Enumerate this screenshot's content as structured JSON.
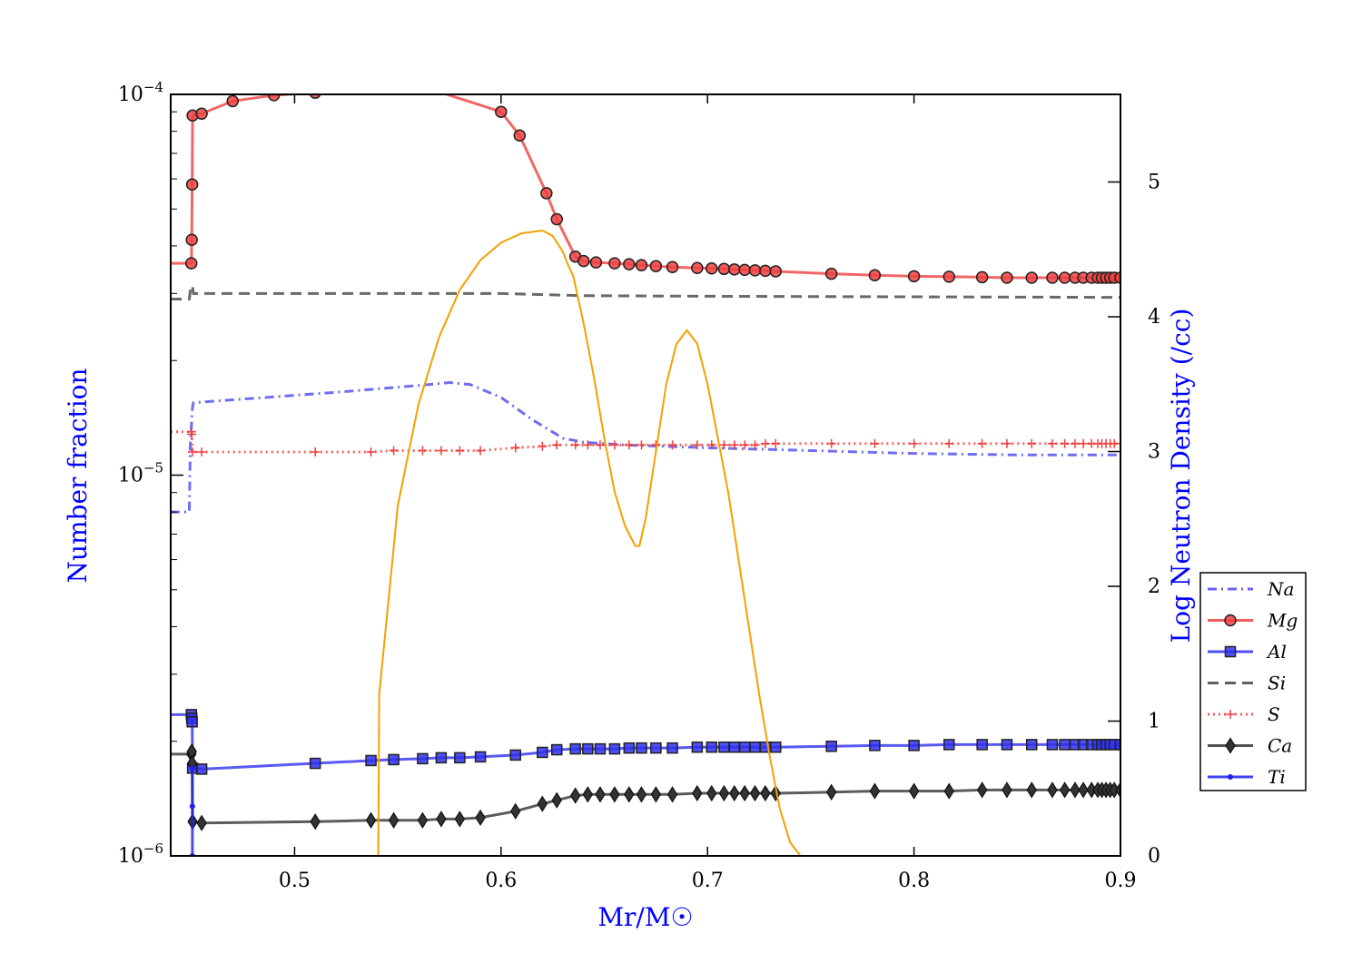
{
  "chart_data": {
    "type": "line",
    "xlabel": "Mr/M☉",
    "ylabel": "Number fraction",
    "y2label": "Log Neutron Density (/cc)",
    "xlim": [
      0.44,
      0.9
    ],
    "ylim": [
      1e-06,
      0.0001
    ],
    "yscale": "log",
    "y2lim": [
      0,
      5.65
    ],
    "xticks": [
      "0.5",
      "0.6",
      "0.7",
      "0.8",
      "0.9"
    ],
    "yticks": [
      {
        "base": "10",
        "exp": "−4"
      },
      {
        "base": "10",
        "exp": "−5"
      },
      {
        "base": "10",
        "exp": "−6"
      }
    ],
    "y2ticks": [
      "0",
      "1",
      "2",
      "3",
      "4",
      "5"
    ],
    "legend_position": "lower-right outside",
    "series": [
      {
        "name": "Na",
        "color": "#4a4af0",
        "style": "dashdot",
        "marker": "none",
        "axis": "left",
        "x": [
          0.44,
          0.449,
          0.4495,
          0.4505,
          0.451,
          0.52,
          0.56,
          0.575,
          0.585,
          0.6,
          0.615,
          0.63,
          0.64,
          0.66,
          0.7,
          0.75,
          0.8,
          0.85,
          0.9
        ],
        "y": [
          8e-06,
          8e-06,
          1.2e-05,
          1.5e-05,
          1.55e-05,
          1.65e-05,
          1.72e-05,
          1.75e-05,
          1.73e-05,
          1.6e-05,
          1.4e-05,
          1.25e-05,
          1.22e-05,
          1.2e-05,
          1.18e-05,
          1.16e-05,
          1.14e-05,
          1.13e-05,
          1.13e-05
        ]
      },
      {
        "name": "Mg",
        "color": "#f04040",
        "style": "solid",
        "marker": "circle",
        "axis": "left",
        "x": [
          0.44,
          0.45,
          0.4502,
          0.4504,
          0.4506,
          0.455,
          0.47,
          0.49,
          0.51,
          0.55,
          0.6,
          0.609,
          0.622,
          0.627,
          0.636,
          0.64,
          0.646,
          0.655,
          0.662,
          0.668,
          0.675,
          0.683,
          0.695,
          0.702,
          0.708,
          0.713,
          0.718,
          0.723,
          0.728,
          0.733,
          0.76,
          0.781,
          0.8,
          0.817,
          0.833,
          0.845,
          0.857,
          0.867,
          0.873,
          0.878,
          0.882,
          0.886,
          0.889,
          0.891,
          0.893,
          0.895,
          0.897,
          0.9
        ],
        "y": [
          3.6e-05,
          3.6e-05,
          4.15e-05,
          5.8e-05,
          8.8e-05,
          8.9e-05,
          9.6e-05,
          9.95e-05,
          0.000101,
          0.00011,
          9e-05,
          7.8e-05,
          5.5e-05,
          4.7e-05,
          3.75e-05,
          3.65e-05,
          3.62e-05,
          3.6e-05,
          3.58e-05,
          3.56e-05,
          3.54e-05,
          3.52e-05,
          3.5e-05,
          3.49e-05,
          3.48e-05,
          3.47e-05,
          3.46e-05,
          3.45e-05,
          3.44e-05,
          3.43e-05,
          3.38e-05,
          3.35e-05,
          3.33e-05,
          3.32e-05,
          3.31e-05,
          3.3e-05,
          3.3e-05,
          3.3e-05,
          3.3e-05,
          3.3e-05,
          3.3e-05,
          3.3e-05,
          3.3e-05,
          3.3e-05,
          3.3e-05,
          3.3e-05,
          3.3e-05,
          3.3e-05
        ],
        "marked_from": 1
      },
      {
        "name": "Al",
        "color": "#3030f0",
        "style": "solid",
        "marker": "square",
        "axis": "left",
        "x": [
          0.44,
          0.45,
          0.4502,
          0.4504,
          0.4506,
          0.455,
          0.51,
          0.537,
          0.548,
          0.562,
          0.571,
          0.58,
          0.59,
          0.607,
          0.62,
          0.627,
          0.636,
          0.642,
          0.648,
          0.655,
          0.662,
          0.668,
          0.675,
          0.683,
          0.695,
          0.702,
          0.708,
          0.713,
          0.718,
          0.723,
          0.728,
          0.733,
          0.76,
          0.781,
          0.8,
          0.817,
          0.833,
          0.845,
          0.857,
          0.867,
          0.873,
          0.878,
          0.882,
          0.886,
          0.889,
          0.891,
          0.893,
          0.895,
          0.897,
          0.9
        ],
        "y": [
          2.35e-06,
          2.35e-06,
          2.3e-06,
          2.25e-06,
          1.7e-06,
          1.69e-06,
          1.75e-06,
          1.78e-06,
          1.79e-06,
          1.8e-06,
          1.81e-06,
          1.81e-06,
          1.82e-06,
          1.84e-06,
          1.87e-06,
          1.9e-06,
          1.91e-06,
          1.91e-06,
          1.91e-06,
          1.91e-06,
          1.92e-06,
          1.92e-06,
          1.92e-06,
          1.92e-06,
          1.93e-06,
          1.93e-06,
          1.93e-06,
          1.93e-06,
          1.93e-06,
          1.93e-06,
          1.93e-06,
          1.93e-06,
          1.94e-06,
          1.95e-06,
          1.95e-06,
          1.96e-06,
          1.96e-06,
          1.96e-06,
          1.96e-06,
          1.96e-06,
          1.96e-06,
          1.96e-06,
          1.96e-06,
          1.96e-06,
          1.96e-06,
          1.96e-06,
          1.96e-06,
          1.96e-06,
          1.96e-06,
          1.96e-06
        ],
        "marked_from": 1
      },
      {
        "name": "Si",
        "color": "#444444",
        "style": "dashed",
        "marker": "none",
        "axis": "left",
        "x": [
          0.44,
          0.449,
          0.4495,
          0.4505,
          0.451,
          0.5,
          0.58,
          0.6,
          0.64,
          0.7,
          0.8,
          0.9
        ],
        "y": [
          2.9e-05,
          2.9e-05,
          3.05e-05,
          3.15e-05,
          3e-05,
          3e-05,
          3e-05,
          3e-05,
          2.96e-05,
          2.95e-05,
          2.94e-05,
          2.93e-05
        ]
      },
      {
        "name": "S",
        "color": "#f04040",
        "style": "dotted",
        "marker": "plus",
        "axis": "left",
        "x": [
          0.44,
          0.45,
          0.4502,
          0.4505,
          0.455,
          0.51,
          0.537,
          0.548,
          0.562,
          0.571,
          0.58,
          0.59,
          0.607,
          0.62,
          0.627,
          0.636,
          0.642,
          0.648,
          0.655,
          0.662,
          0.668,
          0.675,
          0.683,
          0.695,
          0.702,
          0.708,
          0.713,
          0.718,
          0.723,
          0.728,
          0.733,
          0.76,
          0.781,
          0.8,
          0.817,
          0.833,
          0.845,
          0.857,
          0.867,
          0.873,
          0.878,
          0.882,
          0.886,
          0.889,
          0.891,
          0.893,
          0.895,
          0.897,
          0.9
        ],
        "y": [
          1.3e-05,
          1.3e-05,
          1.28e-05,
          1.15e-05,
          1.15e-05,
          1.15e-05,
          1.15e-05,
          1.16e-05,
          1.16e-05,
          1.16e-05,
          1.16e-05,
          1.16e-05,
          1.18e-05,
          1.19e-05,
          1.2e-05,
          1.2e-05,
          1.2e-05,
          1.2e-05,
          1.2e-05,
          1.2e-05,
          1.2e-05,
          1.2e-05,
          1.2e-05,
          1.2e-05,
          1.2e-05,
          1.2e-05,
          1.2e-05,
          1.2e-05,
          1.2e-05,
          1.21e-05,
          1.21e-05,
          1.21e-05,
          1.21e-05,
          1.21e-05,
          1.21e-05,
          1.21e-05,
          1.21e-05,
          1.21e-05,
          1.21e-05,
          1.21e-05,
          1.21e-05,
          1.21e-05,
          1.21e-05,
          1.21e-05,
          1.21e-05,
          1.21e-05,
          1.21e-05,
          1.21e-05,
          1.21e-05
        ],
        "marked_from": 1
      },
      {
        "name": "Ca",
        "color": "#333333",
        "style": "solid",
        "marker": "diamond",
        "axis": "left",
        "x": [
          0.44,
          0.45,
          0.4502,
          0.4504,
          0.4506,
          0.455,
          0.51,
          0.537,
          0.548,
          0.562,
          0.571,
          0.58,
          0.59,
          0.607,
          0.62,
          0.627,
          0.636,
          0.642,
          0.648,
          0.655,
          0.662,
          0.668,
          0.675,
          0.683,
          0.695,
          0.702,
          0.708,
          0.713,
          0.718,
          0.723,
          0.728,
          0.733,
          0.76,
          0.781,
          0.8,
          0.817,
          0.833,
          0.845,
          0.857,
          0.867,
          0.873,
          0.878,
          0.882,
          0.886,
          0.889,
          0.891,
          0.893,
          0.895,
          0.897,
          0.9
        ],
        "y": [
          1.85e-06,
          1.85e-06,
          1.88e-06,
          1.75e-06,
          1.23e-06,
          1.22e-06,
          1.23e-06,
          1.24e-06,
          1.24e-06,
          1.24e-06,
          1.25e-06,
          1.25e-06,
          1.26e-06,
          1.31e-06,
          1.37e-06,
          1.4e-06,
          1.44e-06,
          1.45e-06,
          1.45e-06,
          1.45e-06,
          1.45e-06,
          1.45e-06,
          1.45e-06,
          1.45e-06,
          1.46e-06,
          1.46e-06,
          1.46e-06,
          1.46e-06,
          1.46e-06,
          1.46e-06,
          1.46e-06,
          1.46e-06,
          1.47e-06,
          1.48e-06,
          1.48e-06,
          1.48e-06,
          1.49e-06,
          1.49e-06,
          1.49e-06,
          1.49e-06,
          1.49e-06,
          1.49e-06,
          1.49e-06,
          1.49e-06,
          1.49e-06,
          1.49e-06,
          1.49e-06,
          1.49e-06,
          1.49e-06,
          1.49e-06
        ],
        "marked_from": 1
      },
      {
        "name": "Ti",
        "color": "#2020f0",
        "style": "solid",
        "marker": "dot",
        "axis": "left",
        "x": [
          0.4505,
          0.4505,
          0.4505
        ],
        "y": [
          1e-06,
          1.35e-06,
          1.7e-06
        ]
      },
      {
        "name": "",
        "color": "#f5a000",
        "style": "solid",
        "marker": "none",
        "axis": "right",
        "legend": false,
        "x": [
          0.5405,
          0.541,
          0.55,
          0.56,
          0.57,
          0.58,
          0.59,
          0.6,
          0.61,
          0.62,
          0.625,
          0.63,
          0.632,
          0.635,
          0.64,
          0.645,
          0.65,
          0.655,
          0.66,
          0.665,
          0.667,
          0.67,
          0.675,
          0.68,
          0.685,
          0.69,
          0.695,
          0.7,
          0.705,
          0.71,
          0.715,
          0.72,
          0.725,
          0.73,
          0.735,
          0.74,
          0.745
        ],
        "y": [
          0,
          1.2,
          2.6,
          3.35,
          3.85,
          4.2,
          4.42,
          4.55,
          4.62,
          4.64,
          4.6,
          4.48,
          4.4,
          4.3,
          3.95,
          3.55,
          3.1,
          2.7,
          2.45,
          2.3,
          2.3,
          2.5,
          3.0,
          3.5,
          3.8,
          3.9,
          3.8,
          3.5,
          3.1,
          2.7,
          2.2,
          1.7,
          1.2,
          0.75,
          0.35,
          0.1,
          0
        ]
      }
    ]
  }
}
